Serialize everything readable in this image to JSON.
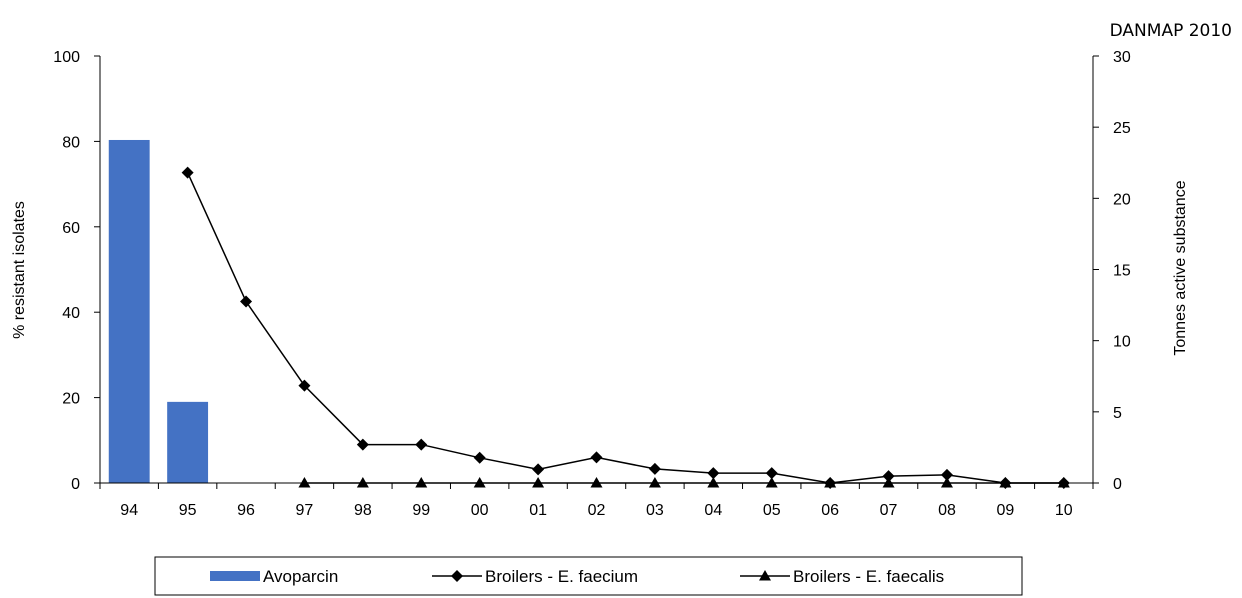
{
  "source_label": "DANMAP 2010",
  "chart_data": {
    "type": "bar-line",
    "categories": [
      "94",
      "95",
      "96",
      "97",
      "98",
      "99",
      "00",
      "01",
      "02",
      "03",
      "04",
      "05",
      "06",
      "07",
      "08",
      "09",
      "10"
    ],
    "ylabel": "% resistant isolates",
    "y2label": "Tonnes active substance",
    "ylim": [
      0,
      100
    ],
    "y2lim": [
      0,
      30
    ],
    "yticks": [
      "0",
      "20",
      "40",
      "60",
      "80",
      "100"
    ],
    "y2ticks": [
      "0",
      "5",
      "10",
      "15",
      "20",
      "25",
      "30"
    ],
    "series": [
      {
        "name": "Avoparcin",
        "type": "bar",
        "axis": "right",
        "color": "#4472C4",
        "values": [
          24.1,
          5.7,
          null,
          null,
          null,
          null,
          null,
          null,
          null,
          null,
          null,
          null,
          null,
          null,
          null,
          null,
          null
        ]
      },
      {
        "name": "Broilers - E. faecium",
        "type": "line",
        "marker": "diamond",
        "axis": "left",
        "color": "#000000",
        "values": [
          null,
          72.7,
          42.5,
          22.8,
          9.0,
          9.0,
          5.9,
          3.2,
          6.0,
          3.3,
          2.3,
          2.3,
          0.0,
          1.6,
          1.9,
          0.0,
          0.0
        ]
      },
      {
        "name": "Broilers - E. faecalis",
        "type": "line",
        "marker": "triangle",
        "axis": "left",
        "color": "#000000",
        "values": [
          null,
          null,
          null,
          0,
          0,
          0,
          0,
          0,
          0,
          0,
          0,
          0,
          0,
          0,
          0,
          0,
          0
        ]
      }
    ],
    "grid": false,
    "legend_position": "bottom"
  }
}
